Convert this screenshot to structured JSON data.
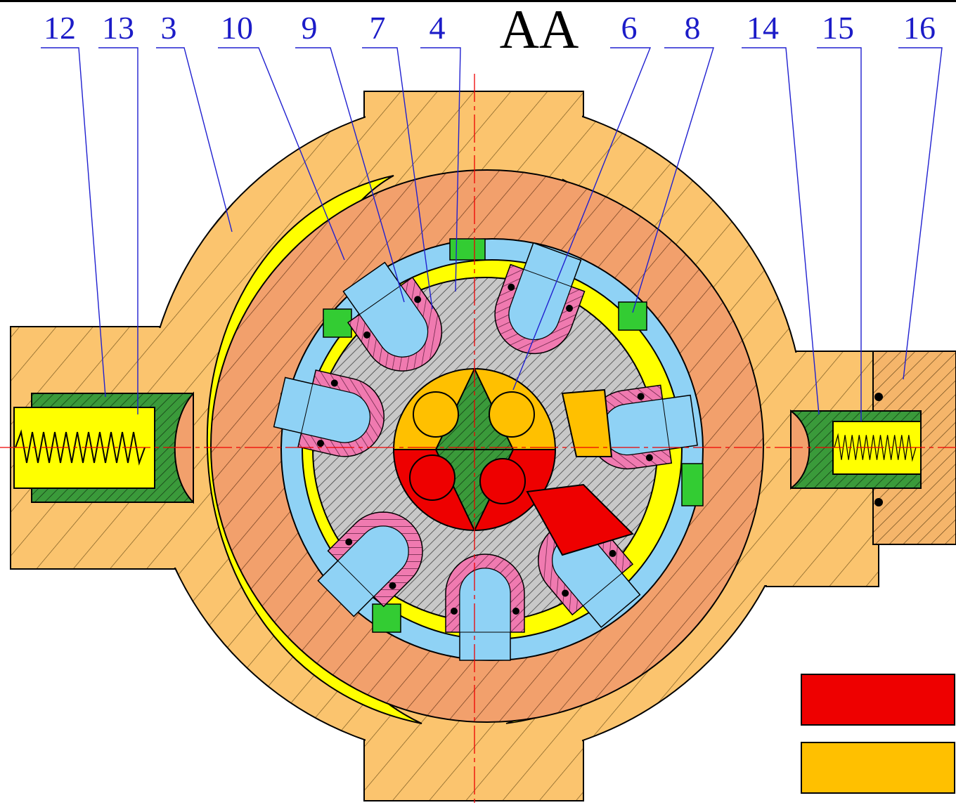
{
  "title": "AA",
  "labels": [
    "12",
    "13",
    "3",
    "10",
    "9",
    "7",
    "4",
    "6",
    "8",
    "14",
    "15",
    "16"
  ]
}
